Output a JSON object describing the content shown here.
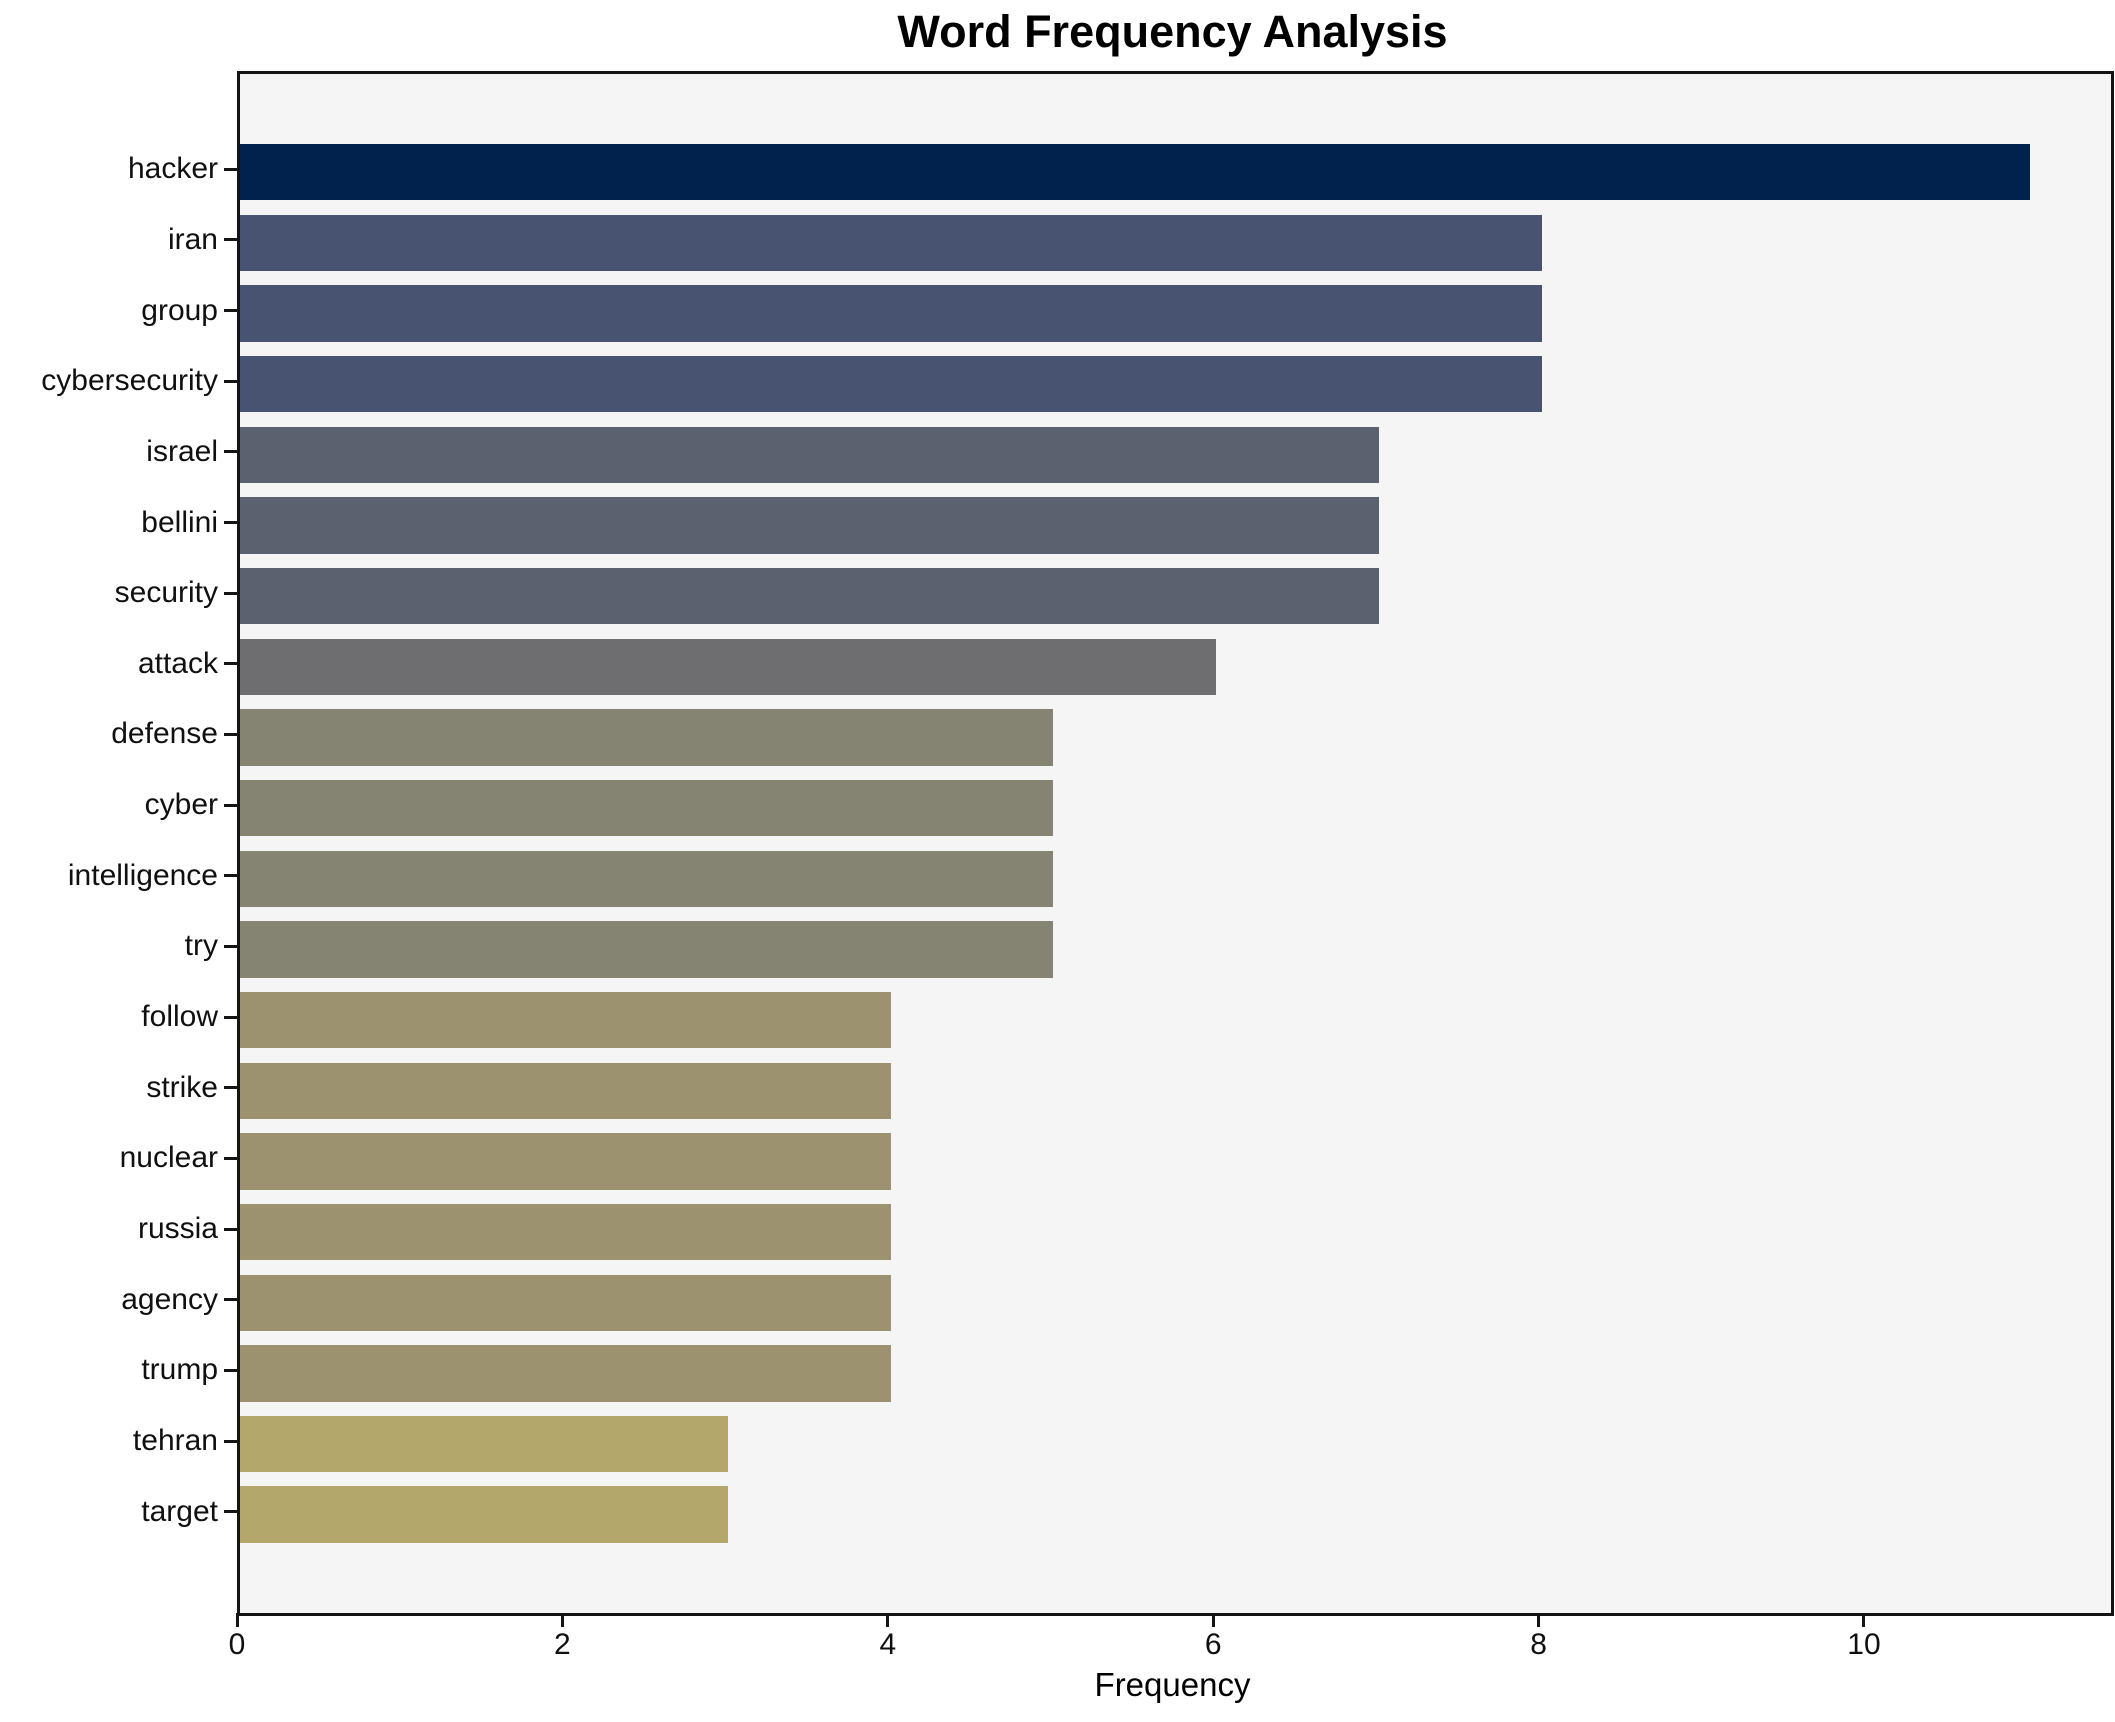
{
  "title": "Word Frequency Analysis",
  "chart_data": {
    "type": "bar",
    "orientation": "horizontal",
    "title": "Word Frequency Analysis",
    "xlabel": "Frequency",
    "ylabel": "",
    "categories": [
      "hacker",
      "iran",
      "group",
      "cybersecurity",
      "israel",
      "bellini",
      "security",
      "attack",
      "defense",
      "cyber",
      "intelligence",
      "try",
      "follow",
      "strike",
      "nuclear",
      "russia",
      "agency",
      "trump",
      "tehran",
      "target"
    ],
    "values": [
      11,
      8,
      8,
      8,
      7,
      7,
      7,
      6,
      5,
      5,
      5,
      5,
      4,
      4,
      4,
      4,
      4,
      4,
      3,
      3
    ],
    "bar_colors": [
      "#01224d",
      "#485371",
      "#485371",
      "#485371",
      "#5c6170",
      "#5c6170",
      "#5c6170",
      "#6e6e71",
      "#858371",
      "#858371",
      "#858371",
      "#858371",
      "#9c9270",
      "#9c9270",
      "#9c9270",
      "#9c9270",
      "#9c9270",
      "#9c9270",
      "#b3a76b",
      "#b3a76b"
    ],
    "xlim": [
      0,
      11.5
    ],
    "xticks": [
      0,
      2,
      4,
      6,
      8,
      10
    ],
    "grid": false,
    "legend_position": "none",
    "plot_background": "#f5f5f6",
    "spine_color": "#141414",
    "figure_background": "#ffffff"
  }
}
